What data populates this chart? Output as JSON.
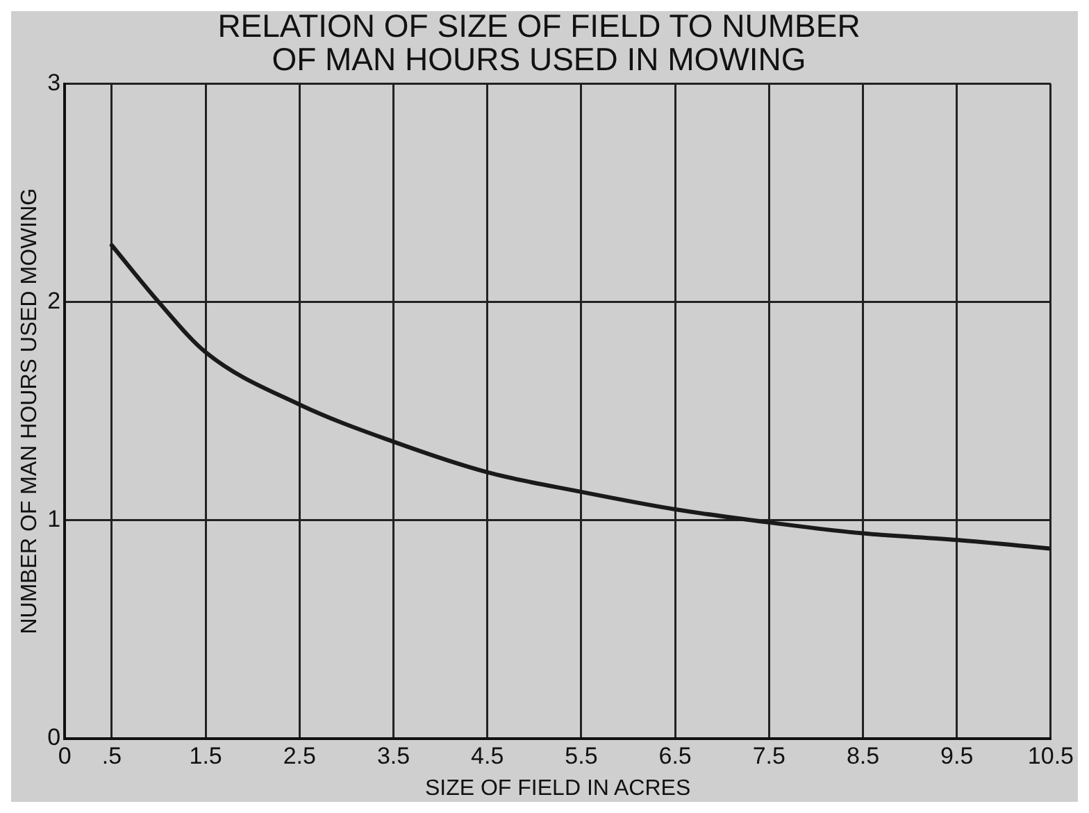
{
  "chart_data": {
    "type": "line",
    "title": "RELATION OF SIZE OF FIELD TO NUMBER\nOF MAN HOURS USED IN MOWING",
    "xlabel": "SIZE OF FIELD IN ACRES",
    "ylabel": "NUMBER OF MAN HOURS USED MOWING",
    "x": [
      0.5,
      1,
      1.5,
      2.5,
      3.5,
      4.5,
      5.5,
      6.5,
      7.5,
      8.5,
      9.5,
      10.5
    ],
    "series": [
      {
        "color": "#1a1a1a",
        "values": [
          2.26,
          2.0,
          1.77,
          1.53,
          1.36,
          1.22,
          1.13,
          1.05,
          0.99,
          0.94,
          0.91,
          0.87
        ]
      }
    ],
    "xlim": [
      0,
      10.5
    ],
    "xticks": [
      0,
      {
        "value": 0.5,
        "label": ".5"
      },
      1.5,
      2.5,
      3.5,
      4.5,
      5.5,
      6.5,
      7.5,
      8.5,
      9.5,
      10.5
    ],
    "ylim": [
      0,
      3
    ],
    "yticks": [
      0,
      1,
      2,
      3
    ],
    "grid": true,
    "legend": false,
    "marker": "none",
    "line_style": "solid"
  }
}
